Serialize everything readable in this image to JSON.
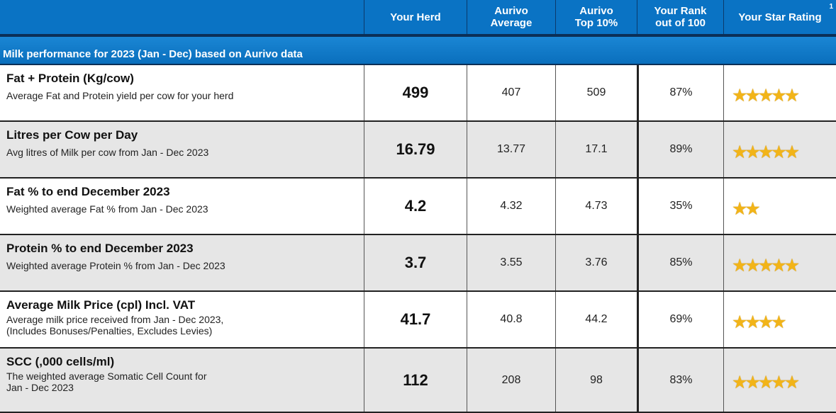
{
  "header": {
    "columns": [
      {
        "label": ""
      },
      {
        "label": "Your Herd"
      },
      {
        "label": "Aurivo\nAverage"
      },
      {
        "label": "Aurivo\nTop 10%"
      },
      {
        "label": "Your Rank\nout of 100"
      },
      {
        "label": "Your Star Rating"
      }
    ],
    "footnote_marker": "1"
  },
  "section": {
    "title": "Milk performance for 2023 (Jan - Dec) based on Aurivo data"
  },
  "rows": [
    {
      "title": "Fat + Protein (Kg/cow)",
      "desc": "Average Fat and Protein yield per cow for your herd",
      "herd": "499",
      "avg": "407",
      "top": "509",
      "rank": "87%",
      "stars": 5
    },
    {
      "title": "Litres per Cow per Day",
      "desc": "Avg litres of Milk per cow from Jan - Dec 2023",
      "herd": "16.79",
      "avg": "13.77",
      "top": "17.1",
      "rank": "89%",
      "stars": 5
    },
    {
      "title": "Fat % to end December 2023",
      "desc": "Weighted average Fat % from Jan - Dec 2023",
      "herd": "4.2",
      "avg": "4.32",
      "top": "4.73",
      "rank": "35%",
      "stars": 2
    },
    {
      "title": "Protein % to end December 2023",
      "desc": "Weighted average Protein % from Jan - Dec 2023",
      "herd": "3.7",
      "avg": "3.55",
      "top": "3.76",
      "rank": "85%",
      "stars": 5
    },
    {
      "title": "Average Milk Price (cpl) Incl. VAT",
      "desc": "Average milk price received from Jan - Dec 2023,\n(Includes Bonuses/Penalties, Excludes Levies)",
      "herd": "41.7",
      "avg": "40.8",
      "top": "44.2",
      "rank": "69%",
      "stars": 4
    },
    {
      "title": "SCC (,000 cells/ml)",
      "desc": "The weighted average Somatic Cell Count for\nJan - Dec 2023",
      "herd": "112",
      "avg": "208",
      "top": "98",
      "rank": "83%",
      "stars": 5
    }
  ],
  "colors": {
    "header_bg": "#0a73c4",
    "section_bg": "#1a86d4",
    "row_alt_bg": "#e6e6e6",
    "star": "#f2b418"
  },
  "icons": {
    "rating": "star-icon"
  }
}
